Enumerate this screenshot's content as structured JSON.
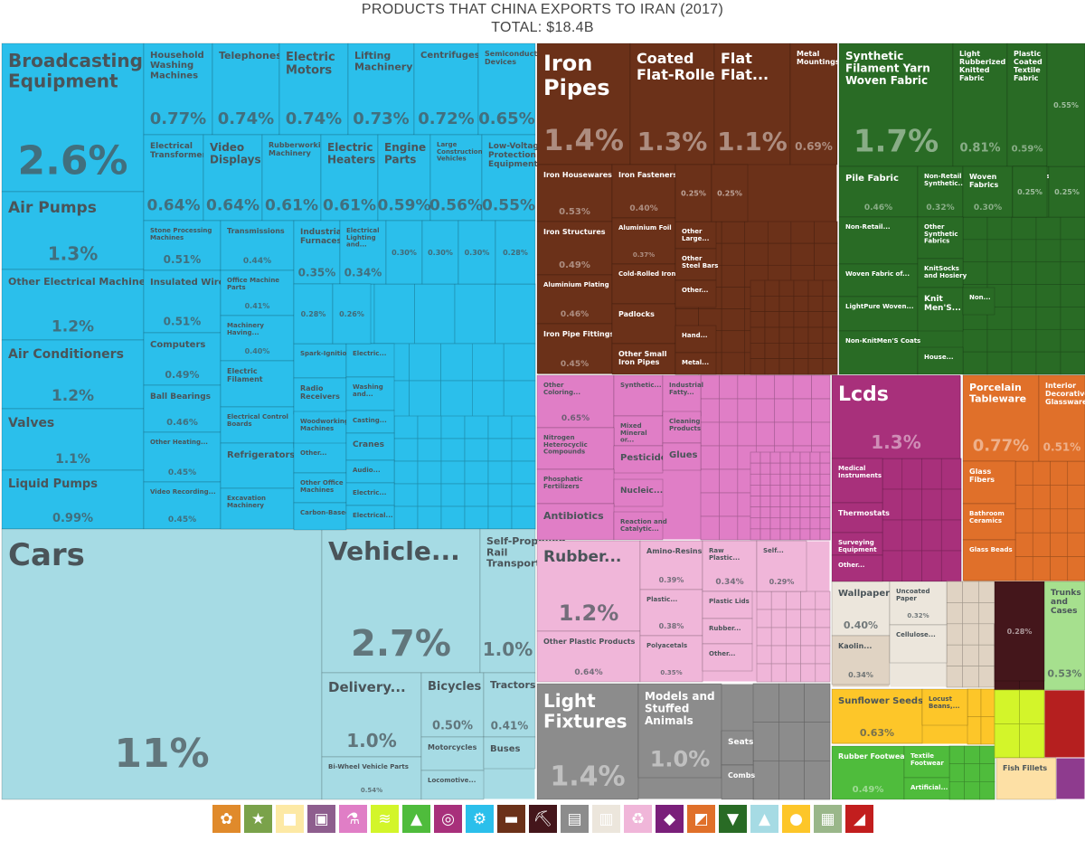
{
  "header": {
    "title": "PRODUCTS THAT CHINA EXPORTS TO IRAN (2017)",
    "total": "TOTAL: $18.4B"
  },
  "colors": {
    "machinery": "#2bbfeb",
    "transport": "#a6dbe4",
    "metals": "#6b3119",
    "textiles": "#296b25",
    "chemicals": "#e07ec6",
    "plastics": "#f0b6d9",
    "instruments": "#a8307b",
    "misc": "#8c8c8c",
    "stone": "#e0d3c3",
    "paper": "#ece6dc",
    "foodstuffs": "#fdc629",
    "footwear": "#4fbc3c",
    "minerals": "#d3f52a",
    "animal_hides": "#44161b",
    "hides_cases": "#a6e08e",
    "glass_ceramics": "#e0702a",
    "weapons": "#b51f1f",
    "vegetables": "#fde0a5",
    "other": "#8e3b8e"
  },
  "chart_data": {
    "type": "treemap",
    "title": "PRODUCTS THAT CHINA EXPORTS TO IRAN (2017)",
    "subtitle": "TOTAL: $18.4B",
    "unit": "share of total exports (%)",
    "items": [
      {
        "name": "Broadcasting Equipment",
        "value": 2.6,
        "sector": "machinery"
      },
      {
        "name": "Air Pumps",
        "value": 1.3,
        "sector": "machinery"
      },
      {
        "name": "Other Electrical Machinery",
        "value": 1.2,
        "sector": "machinery"
      },
      {
        "name": "Air Conditioners",
        "value": 1.2,
        "sector": "machinery"
      },
      {
        "name": "Valves",
        "value": 1.1,
        "sector": "machinery"
      },
      {
        "name": "Liquid Pumps",
        "value": 0.99,
        "sector": "machinery"
      },
      {
        "name": "Household Washing Machines",
        "value": 0.77,
        "sector": "machinery"
      },
      {
        "name": "Telephones",
        "value": 0.74,
        "sector": "machinery"
      },
      {
        "name": "Electric Motors",
        "value": 0.74,
        "sector": "machinery"
      },
      {
        "name": "Lifting Machinery",
        "value": 0.73,
        "sector": "machinery"
      },
      {
        "name": "Centrifuges",
        "value": 0.72,
        "sector": "machinery"
      },
      {
        "name": "Semiconductor Devices",
        "value": 0.65,
        "sector": "machinery"
      },
      {
        "name": "Electrical Transformers",
        "value": 0.64,
        "sector": "machinery"
      },
      {
        "name": "Video Displays",
        "value": 0.64,
        "sector": "machinery"
      },
      {
        "name": "Rubberworking Machinery",
        "value": 0.61,
        "sector": "machinery"
      },
      {
        "name": "Electric Heaters",
        "value": 0.61,
        "sector": "machinery"
      },
      {
        "name": "Engine Parts",
        "value": 0.59,
        "sector": "machinery"
      },
      {
        "name": "Large Construction Vehicles",
        "value": 0.56,
        "sector": "machinery"
      },
      {
        "name": "Low-Voltage Protection Equipment",
        "value": 0.55,
        "sector": "machinery"
      },
      {
        "name": "Stone Processing Machines",
        "value": 0.51,
        "sector": "machinery"
      },
      {
        "name": "Insulated Wire",
        "value": 0.51,
        "sector": "machinery"
      },
      {
        "name": "Computers",
        "value": 0.49,
        "sector": "machinery"
      },
      {
        "name": "Ball Bearings",
        "value": 0.46,
        "sector": "machinery"
      },
      {
        "name": "Other Heating...",
        "value": 0.45,
        "sector": "machinery"
      },
      {
        "name": "Video Recording...",
        "value": 0.45,
        "sector": "machinery"
      },
      {
        "name": "Transmissions",
        "value": 0.44,
        "sector": "machinery"
      },
      {
        "name": "Office Machine Parts",
        "value": 0.41,
        "sector": "machinery"
      },
      {
        "name": "Machinery Having...",
        "value": 0.4,
        "sector": "machinery"
      },
      {
        "name": "Industrial Furnaces",
        "value": 0.35,
        "sector": "machinery"
      },
      {
        "name": "Electrical Lighting and...",
        "value": 0.34,
        "sector": "machinery"
      },
      {
        "name": "Cars",
        "value": 11,
        "sector": "transport"
      },
      {
        "name": "Vehicle...",
        "value": 2.7,
        "sector": "transport"
      },
      {
        "name": "Self-Propelled Rail Transport",
        "value": 1.0,
        "sector": "transport"
      },
      {
        "name": "Delivery...",
        "value": 1.0,
        "sector": "transport"
      },
      {
        "name": "Bicycles",
        "value": 0.5,
        "sector": "transport"
      },
      {
        "name": "Tractors",
        "value": 0.41,
        "sector": "transport"
      },
      {
        "name": "Bi-Wheel Vehicle Parts",
        "value": 0.54,
        "sector": "transport"
      },
      {
        "name": "Iron Pipes",
        "value": 1.4,
        "sector": "metals"
      },
      {
        "name": "Coated Flat-Rolled...",
        "value": 1.3,
        "sector": "metals"
      },
      {
        "name": "Flat Flat...",
        "value": 1.1,
        "sector": "metals"
      },
      {
        "name": "Metal Mountings",
        "value": 0.69,
        "sector": "metals"
      },
      {
        "name": "Iron Housewares",
        "value": 0.53,
        "sector": "metals"
      },
      {
        "name": "Iron Structures",
        "value": 0.49,
        "sector": "metals"
      },
      {
        "name": "Aluminium Plating",
        "value": 0.46,
        "sector": "metals"
      },
      {
        "name": "Iron Pipe Fittings",
        "value": 0.45,
        "sector": "metals"
      },
      {
        "name": "Iron Fasteners",
        "value": 0.4,
        "sector": "metals"
      },
      {
        "name": "Aluminium Foil",
        "value": 0.37,
        "sector": "metals"
      },
      {
        "name": "Synthetic Filament Yarn Woven Fabric",
        "value": 1.7,
        "sector": "textiles"
      },
      {
        "name": "Light Rubberized Knitted Fabric",
        "value": 0.81,
        "sector": "textiles"
      },
      {
        "name": "Plastic Coated Textile Fabric",
        "value": 0.59,
        "sector": "textiles"
      },
      {
        "name": "Pile Fabric",
        "value": 0.46,
        "sector": "textiles"
      },
      {
        "name": "Non-Retail Synthetic...",
        "value": 0.32,
        "sector": "textiles"
      },
      {
        "name": "Woven Fabrics",
        "value": 0.3,
        "sector": "textiles"
      },
      {
        "name": "Other Coloring...",
        "value": 0.65,
        "sector": "chemicals"
      },
      {
        "name": "Rubber...",
        "value": 1.2,
        "sector": "plastics"
      },
      {
        "name": "Other Plastic Products",
        "value": 0.64,
        "sector": "plastics"
      },
      {
        "name": "Amino-Resins",
        "value": 0.39,
        "sector": "plastics"
      },
      {
        "name": "Plastic...",
        "value": 0.38,
        "sector": "plastics"
      },
      {
        "name": "Raw Plastic...",
        "value": 0.34,
        "sector": "plastics"
      },
      {
        "name": "Polyacetals",
        "value": 0.35,
        "sector": "plastics"
      },
      {
        "name": "Self...",
        "value": 0.29,
        "sector": "plastics"
      },
      {
        "name": "Light Fixtures",
        "value": 1.4,
        "sector": "misc"
      },
      {
        "name": "Models and Stuffed Animals",
        "value": 1.0,
        "sector": "misc"
      },
      {
        "name": "Lcds",
        "value": 1.3,
        "sector": "instruments"
      },
      {
        "name": "Porcelain Tableware",
        "value": 0.77,
        "sector": "glass_ceramics"
      },
      {
        "name": "Interior Decorative Glassware",
        "value": 0.51,
        "sector": "glass_ceramics"
      },
      {
        "name": "Wallpaper",
        "value": 0.4,
        "sector": "paper"
      },
      {
        "name": "Kaolin...",
        "value": 0.34,
        "sector": "stone"
      },
      {
        "name": "Uncoated Paper",
        "value": 0.32,
        "sector": "paper"
      },
      {
        "name": "Sunflower Seeds",
        "value": 0.63,
        "sector": "foodstuffs"
      },
      {
        "name": "Rubber Footwear",
        "value": 0.49,
        "sector": "footwear"
      },
      {
        "name": "Trunks and Cases",
        "value": 0.53,
        "sector": "hides_cases"
      }
    ]
  },
  "legend": [
    {
      "sector": "vegetable-products",
      "color": "#e08a2b",
      "glyph": "✿"
    },
    {
      "sector": "animal-products",
      "color": "#7aa24a",
      "glyph": "★"
    },
    {
      "sector": "animal-hides",
      "color": "#fde9a5",
      "glyph": "■"
    },
    {
      "sector": "textiles",
      "color": "#8e5e8e",
      "glyph": "▣"
    },
    {
      "sector": "chemicals",
      "color": "#e07ec6",
      "glyph": "⚗"
    },
    {
      "sector": "foodstuffs",
      "color": "#d3f52a",
      "glyph": "≋"
    },
    {
      "sector": "footwear",
      "color": "#4fbc3c",
      "glyph": "▲"
    },
    {
      "sector": "instruments",
      "color": "#a8307b",
      "glyph": "◎"
    },
    {
      "sector": "machinery",
      "color": "#2bbfeb",
      "glyph": "⚙"
    },
    {
      "sector": "metals",
      "color": "#6b3119",
      "glyph": "▬"
    },
    {
      "sector": "minerals",
      "color": "#44161b",
      "glyph": "⛏"
    },
    {
      "sector": "miscellaneous",
      "color": "#8c8c8c",
      "glyph": "▤"
    },
    {
      "sector": "paper-goods",
      "color": "#ece6dc",
      "glyph": "▥"
    },
    {
      "sector": "plastics",
      "color": "#f0b6d9",
      "glyph": "♻"
    },
    {
      "sector": "precious-metals",
      "color": "#7a1f7a",
      "glyph": "◆"
    },
    {
      "sector": "stone-and-glass",
      "color": "#e0702a",
      "glyph": "◩"
    },
    {
      "sector": "textile-apparel",
      "color": "#296b25",
      "glyph": "▼"
    },
    {
      "sector": "transportation",
      "color": "#a6dbe4",
      "glyph": "▲"
    },
    {
      "sector": "weapons-food",
      "color": "#fdc629",
      "glyph": "●"
    },
    {
      "sector": "wood-products",
      "color": "#9ab78a",
      "glyph": "▦"
    },
    {
      "sector": "weapons",
      "color": "#c21e1e",
      "glyph": "◢"
    }
  ]
}
